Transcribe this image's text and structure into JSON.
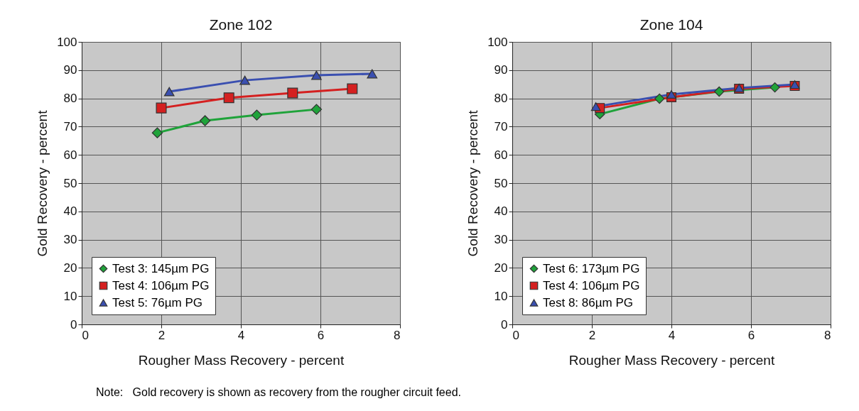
{
  "chart_data": [
    {
      "type": "line",
      "title": "Zone 102",
      "xlabel": "Rougher Mass Recovery - percent",
      "ylabel": "Gold Recovery - percent",
      "xlim": [
        0,
        8
      ],
      "xticks": [
        0,
        2,
        4,
        6,
        8
      ],
      "ylim": [
        0,
        100
      ],
      "yticks": [
        0,
        10,
        20,
        30,
        40,
        50,
        60,
        70,
        80,
        90,
        100
      ],
      "grid": true,
      "legend": "bottom left",
      "line_style": "solid",
      "series": [
        {
          "name": "Test 3: 145µm PG",
          "color": "#1fa33a",
          "marker": "diamond",
          "x": [
            1.9,
            3.1,
            4.4,
            5.9
          ],
          "values": [
            67.8,
            72.1,
            74.1,
            76.1
          ]
        },
        {
          "name": "Test 4: 106µm PG",
          "color": "#d42020",
          "marker": "square",
          "x": [
            2.0,
            3.7,
            5.3,
            6.8
          ],
          "values": [
            76.6,
            80.2,
            81.9,
            83.4
          ]
        },
        {
          "name": "Test 5: 76µm PG",
          "color": "#3a4fb0",
          "marker": "triangle",
          "x": [
            2.2,
            4.1,
            5.9,
            7.3
          ],
          "values": [
            82.4,
            86.4,
            88.2,
            88.7
          ]
        }
      ],
      "annotations": [
        "Note:   Gold recovery is shown as recovery from the rougher circuit feed."
      ]
    },
    {
      "type": "line",
      "title": "Zone 104",
      "xlabel": "Rougher Mass Recovery - percent",
      "ylabel": "Gold Recovery - percent",
      "xlim": [
        0,
        8
      ],
      "xticks": [
        0,
        2,
        4,
        6,
        8
      ],
      "ylim": [
        0,
        100
      ],
      "yticks": [
        0,
        10,
        20,
        30,
        40,
        50,
        60,
        70,
        80,
        90,
        100
      ],
      "grid": true,
      "legend": "bottom left",
      "line_style": "solid",
      "series": [
        {
          "name": "Test 6: 173µm PG",
          "color": "#1fa33a",
          "marker": "diamond",
          "x": [
            2.2,
            3.7,
            5.2,
            6.6
          ],
          "values": [
            74.4,
            79.9,
            82.4,
            83.9
          ]
        },
        {
          "name": "Test 4: 106µm PG",
          "color": "#d42020",
          "marker": "square",
          "x": [
            2.2,
            4.0,
            5.7,
            7.1
          ],
          "values": [
            76.6,
            80.4,
            83.4,
            84.4
          ]
        },
        {
          "name": "Test 8: 86µm PG",
          "color": "#3a4fb0",
          "marker": "triangle",
          "x": [
            2.1,
            4.0,
            5.7,
            7.1
          ],
          "values": [
            77.1,
            81.4,
            83.7,
            84.9
          ]
        }
      ]
    }
  ]
}
